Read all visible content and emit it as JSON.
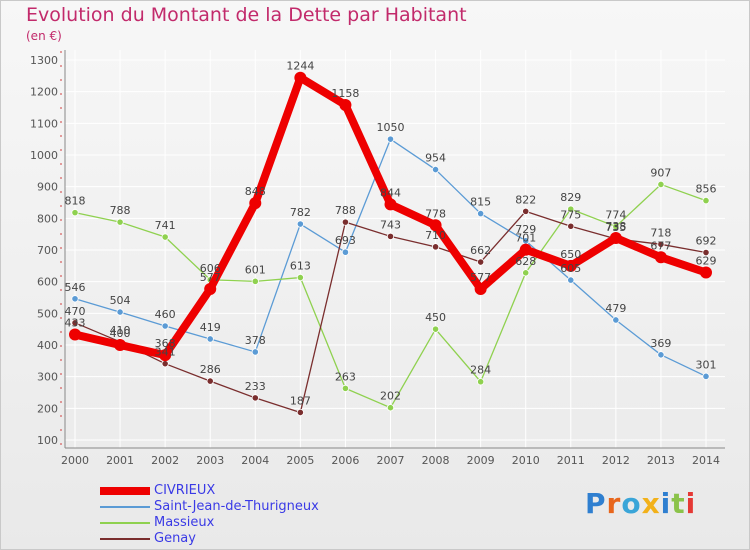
{
  "title": "Evolution du Montant de la Dette par Habitant",
  "subtitle": "(en €)",
  "brand": "Proxiti",
  "chart_data": {
    "type": "line",
    "title": "Evolution du Montant de la Dette par Habitant",
    "subtitle": "(en €)",
    "xlabel": "",
    "ylabel": "",
    "x": [
      2000,
      2001,
      2002,
      2003,
      2004,
      2005,
      2006,
      2007,
      2008,
      2009,
      2010,
      2011,
      2012,
      2013,
      2014
    ],
    "ylim": [
      100,
      1300
    ],
    "yticks": [
      100,
      200,
      300,
      400,
      500,
      600,
      700,
      800,
      900,
      1000,
      1100,
      1200,
      1300
    ],
    "grid": true,
    "legend": "bottom-left",
    "series": [
      {
        "name": "Saint-Jean-de-Thurigneux",
        "color": "#5b9bd5",
        "values": [
          546,
          504,
          460,
          419,
          378,
          782,
          693,
          1050,
          954,
          815,
          729,
          605,
          479,
          369,
          301
        ],
        "labels": [
          "546",
          "504",
          "460",
          "419",
          "378",
          "782",
          "693",
          "1050",
          "954",
          "815",
          "729",
          "605",
          "479",
          "369",
          "301"
        ]
      },
      {
        "name": "Massieux",
        "color": "#8fd14f",
        "values": [
          818,
          788,
          741,
          606,
          601,
          613,
          263,
          202,
          450,
          284,
          628,
          829,
          774,
          907,
          856
        ],
        "labels": [
          "818",
          "788",
          "741",
          "606",
          "601",
          "613",
          "263",
          "202",
          "450",
          "284",
          "628",
          "829",
          "774",
          "907",
          "856"
        ]
      },
      {
        "name": "Genay",
        "color": "#7a2e2e",
        "values": [
          470,
          410,
          341,
          286,
          233,
          187,
          788,
          743,
          710,
          662,
          822,
          775,
          735,
          718,
          692
        ],
        "labels": [
          "470",
          "410",
          "341",
          "286",
          "233",
          "187",
          "788",
          "743",
          "710",
          "662",
          "822",
          "775",
          "735",
          "718",
          "692"
        ]
      },
      {
        "name": "CIVRIEUX",
        "color": "#ee0000",
        "values": [
          433,
          400,
          368,
          577,
          848,
          1244,
          1158,
          844,
          778,
          577,
          701,
          650,
          738,
          677,
          629
        ],
        "labels": [
          "433",
          "400",
          "368",
          "577",
          "848",
          "1244",
          "1158",
          "844",
          "778",
          "577",
          "701",
          "650",
          "738",
          "677",
          "629"
        ]
      }
    ],
    "legend_order": [
      "CIVRIEUX",
      "Saint-Jean-de-Thurigneux",
      "Massieux",
      "Genay"
    ]
  }
}
